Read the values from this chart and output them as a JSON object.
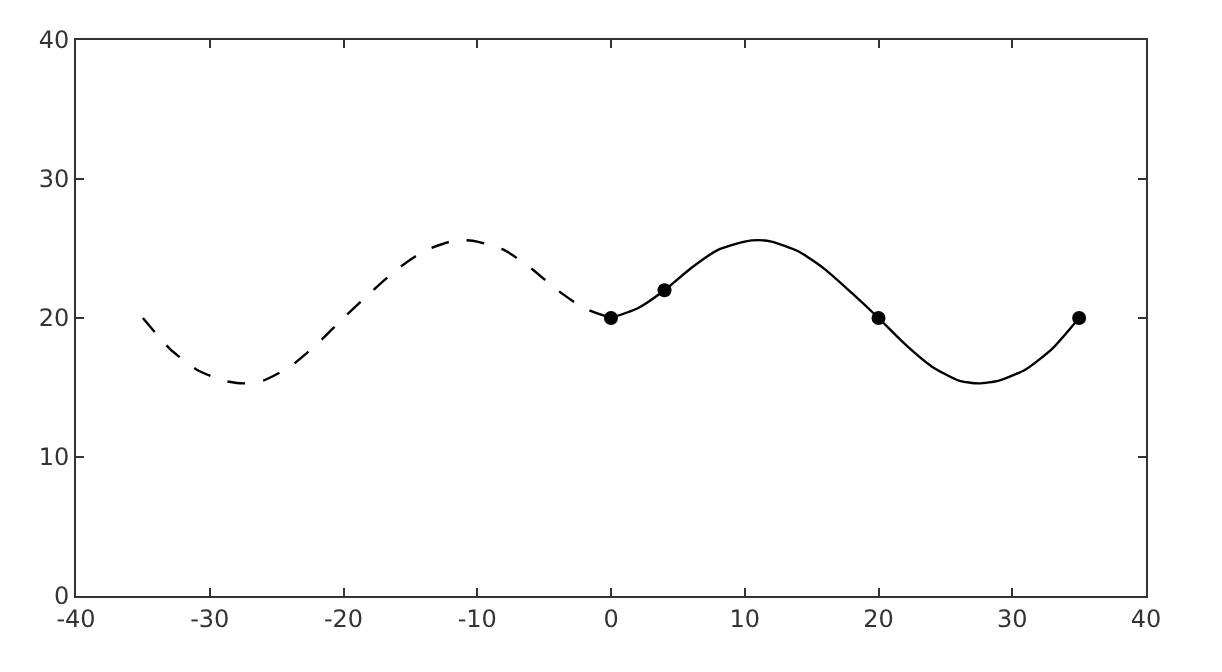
{
  "chart_data": {
    "type": "line",
    "xlim": [
      -40,
      40
    ],
    "ylim": [
      0,
      40
    ],
    "xticks": [
      -40,
      -30,
      -20,
      -10,
      0,
      10,
      20,
      30,
      40
    ],
    "yticks": [
      0,
      10,
      20,
      30,
      40
    ],
    "series": [
      {
        "color": "#000000",
        "line_style": "dashed",
        "marker": "none",
        "x": [
          -35,
          -33,
          -31,
          -29,
          -27.5,
          -26,
          -24,
          -22,
          -20,
          -18,
          -16,
          -14,
          -12,
          -11,
          -10,
          -8,
          -6,
          -4,
          -2,
          0
        ],
        "values": [
          20,
          17.8,
          16.3,
          15.5,
          15.3,
          15.5,
          16.5,
          18.1,
          20,
          21.8,
          23.5,
          24.8,
          25.5,
          25.6,
          25.5,
          24.9,
          23.6,
          22,
          20.7,
          20
        ]
      },
      {
        "color": "#000000",
        "line_style": "solid",
        "marker": "none",
        "x": [
          0,
          2,
          4,
          6,
          8,
          10,
          11,
          12,
          14,
          16,
          18,
          20,
          22,
          24,
          26,
          27.5,
          29,
          31,
          33,
          35
        ],
        "values": [
          20,
          20.7,
          22,
          23.6,
          24.9,
          25.5,
          25.6,
          25.5,
          24.8,
          23.5,
          21.8,
          20,
          18.1,
          16.5,
          15.5,
          15.3,
          15.5,
          16.3,
          17.8,
          20
        ]
      },
      {
        "type": "scatter",
        "color": "#000000",
        "marker": "circle",
        "x": [
          0,
          4,
          20,
          35
        ],
        "values": [
          20,
          22,
          20,
          20
        ]
      }
    ]
  }
}
